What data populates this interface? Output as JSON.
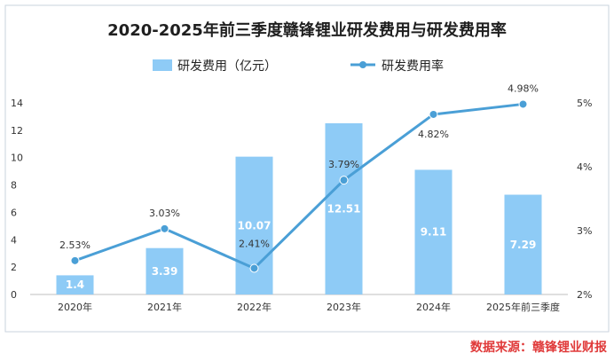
{
  "source": "数据来源：赣锋锂业财报",
  "chart_data": {
    "type": "bar+line",
    "title": "2020-2025年前三季度赣锋锂业研发费用与研发费用率",
    "categories": [
      "2020年",
      "2021年",
      "2022年",
      "2023年",
      "2024年",
      "2025年前三季度"
    ],
    "series": [
      {
        "name": "研发费用（亿元）",
        "type": "bar",
        "axis": "left",
        "color": "#8ecbf6",
        "values": [
          1.4,
          3.39,
          10.07,
          12.51,
          9.11,
          7.29
        ],
        "labels": [
          "1.4",
          "3.39",
          "10.07",
          "12.51",
          "9.11",
          "7.29"
        ]
      },
      {
        "name": "研发费用率",
        "type": "line",
        "axis": "right",
        "color": "#4a9fd6",
        "values": [
          2.53,
          3.03,
          2.41,
          3.79,
          4.82,
          4.98
        ],
        "labels": [
          "2.53%",
          "3.03%",
          "2.41%",
          "3.79%",
          "4.82%",
          "4.98%"
        ]
      }
    ],
    "left_axis": {
      "min": 0,
      "max": 14,
      "ticks": [
        "0",
        "2",
        "4",
        "6",
        "8",
        "10",
        "12",
        "14"
      ]
    },
    "right_axis": {
      "min": 2,
      "max": 5,
      "ticks": [
        "2%",
        "3%",
        "4%",
        "5%"
      ]
    },
    "legend_position": "top-center"
  }
}
